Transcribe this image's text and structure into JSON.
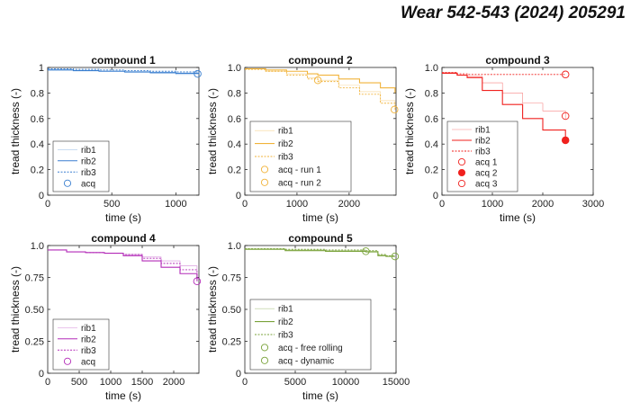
{
  "header": {
    "journal_ref": "Wear 542-543 (2024) 205291"
  },
  "colors": {
    "compound1": "#3a7fd0",
    "compound2": "#f1b33a",
    "compound3": "#f0211e",
    "compound4": "#b32bb8",
    "compound5": "#7aa33b",
    "axis": "#262626",
    "grid": "#ffffff"
  },
  "chart_data": [
    {
      "type": "line",
      "title": "compound 1",
      "xlabel": "time (s)",
      "ylabel": "tread thickness (-)",
      "xlim": [
        0,
        1180
      ],
      "ylim": [
        0,
        1
      ],
      "xticks": [
        0,
        500,
        1000
      ],
      "yticks": [
        0,
        0.2,
        0.4,
        0.6,
        0.8,
        1
      ],
      "ytick_labels": [
        "0",
        "0.2",
        "0.4",
        "0.6",
        "0.8",
        "1"
      ],
      "legend": "bottom-left",
      "series": [
        {
          "name": "rib1",
          "style": "thin",
          "x": [
            0,
            200,
            400,
            600,
            800,
            1000,
            1180
          ],
          "y": [
            0.985,
            0.978,
            0.972,
            0.962,
            0.955,
            0.945,
            0.935
          ]
        },
        {
          "name": "rib2",
          "style": "solid",
          "x": [
            0,
            200,
            400,
            600,
            800,
            1000,
            1180
          ],
          "y": [
            0.98,
            0.975,
            0.97,
            0.965,
            0.96,
            0.955,
            0.95
          ]
        },
        {
          "name": "rib3",
          "style": "dotted",
          "x": [
            0,
            200,
            400,
            600,
            800,
            1000,
            1180
          ],
          "y": [
            0.99,
            0.985,
            0.98,
            0.975,
            0.97,
            0.965,
            0.96
          ]
        }
      ],
      "markers": [
        {
          "name": "acq",
          "x": 1170,
          "y": 0.95,
          "filled": false
        }
      ]
    },
    {
      "type": "line",
      "title": "compound 2",
      "xlabel": "time (s)",
      "ylabel": "tread thickness (-)",
      "xlim": [
        0,
        2900
      ],
      "ylim": [
        0,
        1
      ],
      "xticks": [
        0,
        1000,
        2000
      ],
      "yticks": [
        0,
        0.2,
        0.4,
        0.6,
        0.8,
        1
      ],
      "ytick_labels": [
        "0",
        "0.2",
        "0.4",
        "0.6",
        "0.8",
        "1.0"
      ],
      "legend": "bottom-left",
      "series": [
        {
          "name": "rib1",
          "style": "thin",
          "x": [
            0,
            400,
            800,
            1200,
            1400,
            1800,
            2200,
            2600,
            2880
          ],
          "y": [
            0.99,
            0.97,
            0.95,
            0.92,
            0.9,
            0.86,
            0.81,
            0.74,
            0.68
          ]
        },
        {
          "name": "rib2",
          "style": "solid",
          "x": [
            0,
            400,
            800,
            1200,
            1400,
            1800,
            2200,
            2600,
            2880
          ],
          "y": [
            0.99,
            0.98,
            0.97,
            0.95,
            0.94,
            0.91,
            0.88,
            0.84,
            0.8
          ]
        },
        {
          "name": "rib3",
          "style": "dotted",
          "x": [
            0,
            400,
            800,
            1200,
            1400,
            1800,
            2200,
            2600,
            2880
          ],
          "y": [
            0.985,
            0.97,
            0.94,
            0.91,
            0.89,
            0.84,
            0.79,
            0.72,
            0.67
          ]
        }
      ],
      "markers": [
        {
          "name": "acq - run 1",
          "x": 1400,
          "y": 0.9,
          "filled": false
        },
        {
          "name": "acq - run 2",
          "x": 2870,
          "y": 0.67,
          "filled": false
        }
      ]
    },
    {
      "type": "line",
      "title": "compound 3",
      "xlabel": "time (s)",
      "ylabel": "tread thickness (-)",
      "xlim": [
        0,
        3000
      ],
      "ylim": [
        0,
        1
      ],
      "xticks": [
        0,
        1000,
        2000,
        3000
      ],
      "yticks": [
        0,
        0.2,
        0.4,
        0.6,
        0.8,
        1
      ],
      "ytick_labels": [
        "0",
        "0.2",
        "0.4",
        "0.6",
        "0.8",
        "1.0"
      ],
      "legend": "bottom-left",
      "series": [
        {
          "name": "rib1",
          "style": "thin",
          "x": [
            0,
            300,
            500,
            800,
            1200,
            1600,
            2000,
            2450
          ],
          "y": [
            0.96,
            0.94,
            0.93,
            0.88,
            0.8,
            0.72,
            0.66,
            0.6
          ]
        },
        {
          "name": "rib2",
          "style": "solid",
          "x": [
            0,
            300,
            500,
            800,
            1200,
            1600,
            2000,
            2450
          ],
          "y": [
            0.955,
            0.94,
            0.92,
            0.82,
            0.71,
            0.6,
            0.51,
            0.43
          ]
        },
        {
          "name": "rib3",
          "style": "dotted",
          "x": [
            0,
            300,
            500,
            1000,
            1500,
            2000,
            2450
          ],
          "y": [
            0.96,
            0.95,
            0.945,
            0.945,
            0.945,
            0.945,
            0.945
          ]
        }
      ],
      "markers": [
        {
          "name": "acq 1",
          "x": 2450,
          "y": 0.945,
          "filled": false
        },
        {
          "name": "acq 2",
          "x": 2450,
          "y": 0.43,
          "filled": true
        },
        {
          "name": "acq 3",
          "x": 2450,
          "y": 0.62,
          "filled": false
        }
      ]
    },
    {
      "type": "line",
      "title": "compound 4",
      "xlabel": "time (s)",
      "ylabel": "tread thickness (-)",
      "xlim": [
        0,
        2400
      ],
      "ylim": [
        0,
        1
      ],
      "xticks": [
        0,
        500,
        1000,
        1500,
        2000
      ],
      "yticks": [
        0,
        0.25,
        0.5,
        0.75,
        1
      ],
      "ytick_labels": [
        "0",
        "0.25",
        "0.50",
        "0.75",
        "1.0"
      ],
      "legend": "bottom-left",
      "series": [
        {
          "name": "rib1",
          "style": "thin",
          "x": [
            0,
            300,
            600,
            900,
            1200,
            1500,
            1800,
            2100,
            2370
          ],
          "y": [
            0.965,
            0.95,
            0.945,
            0.94,
            0.93,
            0.91,
            0.88,
            0.84,
            0.8
          ]
        },
        {
          "name": "rib2",
          "style": "solid",
          "x": [
            0,
            300,
            600,
            900,
            1200,
            1500,
            1800,
            2100,
            2370
          ],
          "y": [
            0.965,
            0.95,
            0.945,
            0.94,
            0.92,
            0.88,
            0.83,
            0.78,
            0.72
          ]
        },
        {
          "name": "rib3",
          "style": "dotted",
          "x": [
            0,
            300,
            600,
            900,
            1200,
            1500,
            1800,
            2100,
            2370
          ],
          "y": [
            0.965,
            0.95,
            0.945,
            0.94,
            0.93,
            0.9,
            0.86,
            0.81,
            0.76
          ]
        }
      ],
      "markers": [
        {
          "name": "acq",
          "x": 2370,
          "y": 0.72,
          "filled": false
        }
      ]
    },
    {
      "type": "line",
      "title": "compound 5",
      "xlabel": "time (s)",
      "ylabel": "tread thickness (-)",
      "xlim": [
        0,
        15000
      ],
      "ylim": [
        0,
        1
      ],
      "xticks": [
        0,
        5000,
        10000,
        15000
      ],
      "yticks": [
        0,
        0.25,
        0.5,
        0.75,
        1
      ],
      "ytick_labels": [
        "0",
        "0.25",
        "0.50",
        "0.75",
        "1.0"
      ],
      "legend": "bottom-left",
      "series": [
        {
          "name": "rib1",
          "style": "thin",
          "x": [
            0,
            4000,
            8000,
            12000,
            13200,
            14000,
            14900
          ],
          "y": [
            0.975,
            0.965,
            0.96,
            0.955,
            0.925,
            0.915,
            0.915
          ]
        },
        {
          "name": "rib2",
          "style": "solid",
          "x": [
            0,
            4000,
            8000,
            12000,
            13200,
            14000,
            14900
          ],
          "y": [
            0.97,
            0.96,
            0.955,
            0.95,
            0.92,
            0.915,
            0.915
          ]
        },
        {
          "name": "rib3",
          "style": "dotted",
          "x": [
            0,
            4000,
            8000,
            12000,
            13200,
            14000,
            14900
          ],
          "y": [
            0.975,
            0.97,
            0.965,
            0.96,
            0.93,
            0.92,
            0.92
          ]
        }
      ],
      "markers": [
        {
          "name": "acq - free rolling",
          "x": 12000,
          "y": 0.955,
          "filled": false
        },
        {
          "name": "acq - dynamic",
          "x": 14900,
          "y": 0.915,
          "filled": false
        }
      ]
    }
  ]
}
